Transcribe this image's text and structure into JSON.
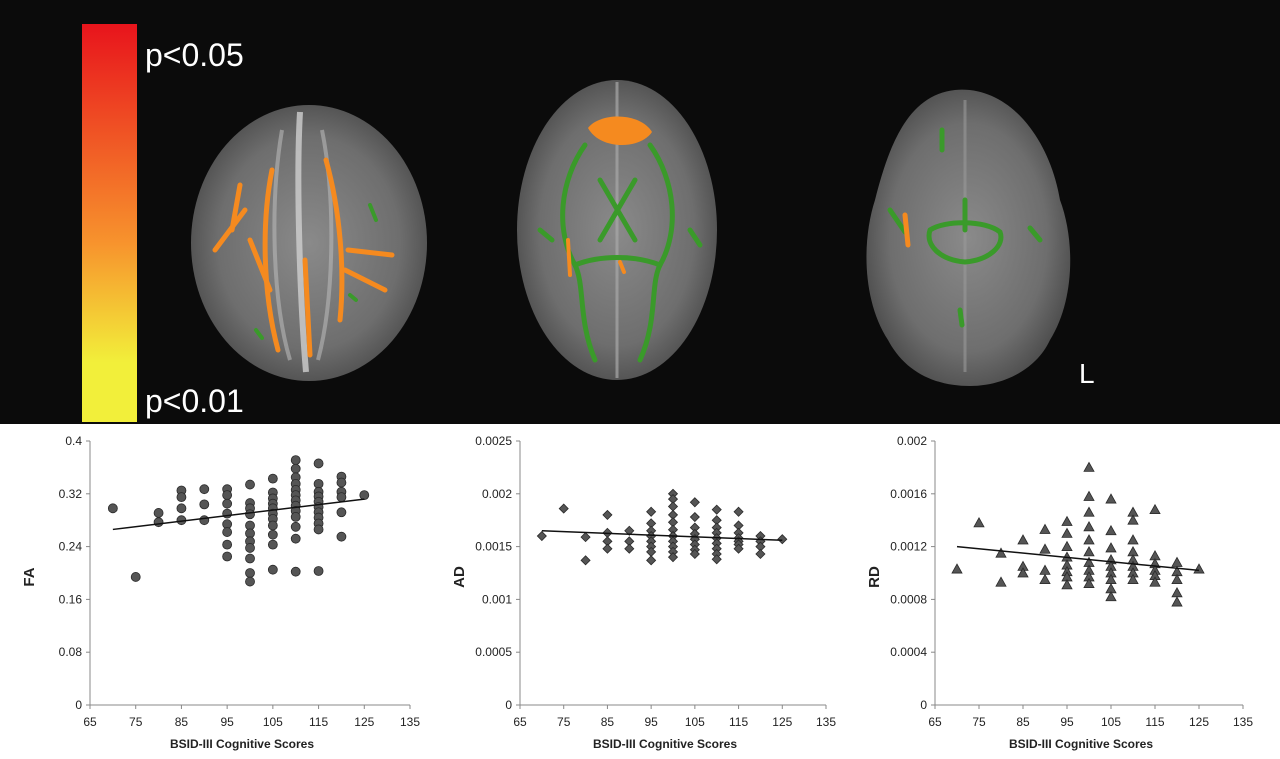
{
  "colorbar": {
    "top_label": "p<0.05",
    "bottom_label": "p<0.01",
    "top_color": "#e8141c",
    "mid_color": "#f7932d",
    "bottom_color": "#f2ef3a"
  },
  "brain": {
    "orientation_label": "L",
    "tract_color": "#3a9a2a",
    "sig_color": "#f58a1f"
  },
  "chart_data": [
    {
      "type": "scatter",
      "marker": "circle",
      "ylabel": "FA",
      "xlabel": "BSID-III Cognitive Scores",
      "xlim": [
        65,
        135
      ],
      "ylim": [
        0,
        0.4
      ],
      "xticks": [
        "65",
        "75",
        "85",
        "95",
        "105",
        "115",
        "125",
        "135"
      ],
      "yticks": [
        "0",
        "0.08",
        "0.16",
        "0.24",
        "0.32",
        "0.4"
      ],
      "trendline": [
        [
          70,
          0.266
        ],
        [
          125,
          0.312
        ]
      ],
      "points": [
        [
          70,
          0.298
        ],
        [
          75,
          0.194
        ],
        [
          80,
          0.291
        ],
        [
          80,
          0.277
        ],
        [
          85,
          0.325
        ],
        [
          85,
          0.315
        ],
        [
          85,
          0.298
        ],
        [
          85,
          0.28
        ],
        [
          90,
          0.327
        ],
        [
          90,
          0.304
        ],
        [
          90,
          0.28
        ],
        [
          95,
          0.327
        ],
        [
          95,
          0.318
        ],
        [
          95,
          0.305
        ],
        [
          95,
          0.29
        ],
        [
          95,
          0.274
        ],
        [
          95,
          0.262
        ],
        [
          95,
          0.243
        ],
        [
          95,
          0.225
        ],
        [
          100,
          0.334
        ],
        [
          100,
          0.306
        ],
        [
          100,
          0.298
        ],
        [
          100,
          0.289
        ],
        [
          100,
          0.272
        ],
        [
          100,
          0.26
        ],
        [
          100,
          0.248
        ],
        [
          100,
          0.238
        ],
        [
          100,
          0.222
        ],
        [
          100,
          0.2
        ],
        [
          100,
          0.187
        ],
        [
          105,
          0.343
        ],
        [
          105,
          0.322
        ],
        [
          105,
          0.313
        ],
        [
          105,
          0.305
        ],
        [
          105,
          0.298
        ],
        [
          105,
          0.29
        ],
        [
          105,
          0.282
        ],
        [
          105,
          0.272
        ],
        [
          105,
          0.258
        ],
        [
          105,
          0.243
        ],
        [
          105,
          0.205
        ],
        [
          110,
          0.371
        ],
        [
          110,
          0.358
        ],
        [
          110,
          0.345
        ],
        [
          110,
          0.335
        ],
        [
          110,
          0.326
        ],
        [
          110,
          0.318
        ],
        [
          110,
          0.31
        ],
        [
          110,
          0.302
        ],
        [
          110,
          0.294
        ],
        [
          110,
          0.285
        ],
        [
          110,
          0.27
        ],
        [
          110,
          0.252
        ],
        [
          110,
          0.202
        ],
        [
          115,
          0.366
        ],
        [
          115,
          0.335
        ],
        [
          115,
          0.323
        ],
        [
          115,
          0.316
        ],
        [
          115,
          0.308
        ],
        [
          115,
          0.3
        ],
        [
          115,
          0.292
        ],
        [
          115,
          0.284
        ],
        [
          115,
          0.275
        ],
        [
          115,
          0.266
        ],
        [
          115,
          0.203
        ],
        [
          120,
          0.346
        ],
        [
          120,
          0.337
        ],
        [
          120,
          0.323
        ],
        [
          120,
          0.315
        ],
        [
          120,
          0.292
        ],
        [
          120,
          0.255
        ],
        [
          125,
          0.318
        ]
      ]
    },
    {
      "type": "scatter",
      "marker": "diamond",
      "ylabel": "AD",
      "xlabel": "BSID-III Cognitive Scores",
      "xlim": [
        65,
        135
      ],
      "ylim": [
        0,
        0.0025
      ],
      "xticks": [
        "65",
        "75",
        "85",
        "95",
        "105",
        "115",
        "125",
        "135"
      ],
      "yticks": [
        "0",
        "0.0005",
        "0.001",
        "0.0015",
        "0.002",
        "0.0025"
      ],
      "trendline": [
        [
          70,
          0.00165
        ],
        [
          125,
          0.00156
        ]
      ],
      "points": [
        [
          70,
          0.0016
        ],
        [
          75,
          0.00186
        ],
        [
          80,
          0.00159
        ],
        [
          80,
          0.00137
        ],
        [
          85,
          0.0018
        ],
        [
          85,
          0.00163
        ],
        [
          85,
          0.00155
        ],
        [
          85,
          0.00148
        ],
        [
          90,
          0.00165
        ],
        [
          90,
          0.00155
        ],
        [
          90,
          0.00148
        ],
        [
          95,
          0.00183
        ],
        [
          95,
          0.00172
        ],
        [
          95,
          0.00165
        ],
        [
          95,
          0.0016
        ],
        [
          95,
          0.00155
        ],
        [
          95,
          0.0015
        ],
        [
          95,
          0.00145
        ],
        [
          95,
          0.00137
        ],
        [
          100,
          0.002
        ],
        [
          100,
          0.00195
        ],
        [
          100,
          0.00188
        ],
        [
          100,
          0.0018
        ],
        [
          100,
          0.00173
        ],
        [
          100,
          0.00166
        ],
        [
          100,
          0.0016
        ],
        [
          100,
          0.00155
        ],
        [
          100,
          0.0015
        ],
        [
          100,
          0.00145
        ],
        [
          100,
          0.0014
        ],
        [
          105,
          0.00192
        ],
        [
          105,
          0.00178
        ],
        [
          105,
          0.00168
        ],
        [
          105,
          0.00162
        ],
        [
          105,
          0.00157
        ],
        [
          105,
          0.00152
        ],
        [
          105,
          0.00147
        ],
        [
          105,
          0.00143
        ],
        [
          110,
          0.00185
        ],
        [
          110,
          0.00175
        ],
        [
          110,
          0.00168
        ],
        [
          110,
          0.00163
        ],
        [
          110,
          0.00158
        ],
        [
          110,
          0.00153
        ],
        [
          110,
          0.00148
        ],
        [
          110,
          0.00143
        ],
        [
          110,
          0.00138
        ],
        [
          115,
          0.00183
        ],
        [
          115,
          0.0017
        ],
        [
          115,
          0.00163
        ],
        [
          115,
          0.00158
        ],
        [
          115,
          0.00155
        ],
        [
          115,
          0.00152
        ],
        [
          115,
          0.00148
        ],
        [
          120,
          0.0016
        ],
        [
          120,
          0.00155
        ],
        [
          120,
          0.0015
        ],
        [
          120,
          0.00143
        ],
        [
          125,
          0.00157
        ]
      ]
    },
    {
      "type": "scatter",
      "marker": "triangle",
      "ylabel": "RD",
      "xlabel": "BSID-III Cognitive Scores",
      "xlim": [
        65,
        135
      ],
      "ylim": [
        0,
        0.002
      ],
      "xticks": [
        "65",
        "75",
        "85",
        "95",
        "105",
        "115",
        "125",
        "135"
      ],
      "yticks": [
        "0",
        "0.0004",
        "0.0008",
        "0.0012",
        "0.0016",
        "0.002"
      ],
      "trendline": [
        [
          70,
          0.0012
        ],
        [
          125,
          0.00102
        ]
      ],
      "points": [
        [
          70,
          0.00103
        ],
        [
          75,
          0.00138
        ],
        [
          80,
          0.00115
        ],
        [
          80,
          0.00093
        ],
        [
          85,
          0.00125
        ],
        [
          85,
          0.00105
        ],
        [
          85,
          0.001
        ],
        [
          90,
          0.00133
        ],
        [
          90,
          0.00118
        ],
        [
          90,
          0.00102
        ],
        [
          90,
          0.00095
        ],
        [
          95,
          0.00139
        ],
        [
          95,
          0.0013
        ],
        [
          95,
          0.0012
        ],
        [
          95,
          0.00112
        ],
        [
          95,
          0.00106
        ],
        [
          95,
          0.00101
        ],
        [
          95,
          0.00097
        ],
        [
          95,
          0.00091
        ],
        [
          100,
          0.0018
        ],
        [
          100,
          0.00158
        ],
        [
          100,
          0.00146
        ],
        [
          100,
          0.00135
        ],
        [
          100,
          0.00125
        ],
        [
          100,
          0.00116
        ],
        [
          100,
          0.00108
        ],
        [
          100,
          0.00102
        ],
        [
          100,
          0.00097
        ],
        [
          100,
          0.00092
        ],
        [
          105,
          0.00156
        ],
        [
          105,
          0.00132
        ],
        [
          105,
          0.00119
        ],
        [
          105,
          0.0011
        ],
        [
          105,
          0.00105
        ],
        [
          105,
          0.001
        ],
        [
          105,
          0.00095
        ],
        [
          105,
          0.00088
        ],
        [
          105,
          0.00082
        ],
        [
          110,
          0.00146
        ],
        [
          110,
          0.0014
        ],
        [
          110,
          0.00125
        ],
        [
          110,
          0.00116
        ],
        [
          110,
          0.0011
        ],
        [
          110,
          0.00105
        ],
        [
          110,
          0.001
        ],
        [
          110,
          0.00095
        ],
        [
          115,
          0.00148
        ],
        [
          115,
          0.00113
        ],
        [
          115,
          0.00107
        ],
        [
          115,
          0.00102
        ],
        [
          115,
          0.00098
        ],
        [
          115,
          0.00093
        ],
        [
          120,
          0.00108
        ],
        [
          120,
          0.00101
        ],
        [
          120,
          0.00095
        ],
        [
          120,
          0.00085
        ],
        [
          120,
          0.00078
        ],
        [
          125,
          0.00103
        ]
      ]
    }
  ]
}
